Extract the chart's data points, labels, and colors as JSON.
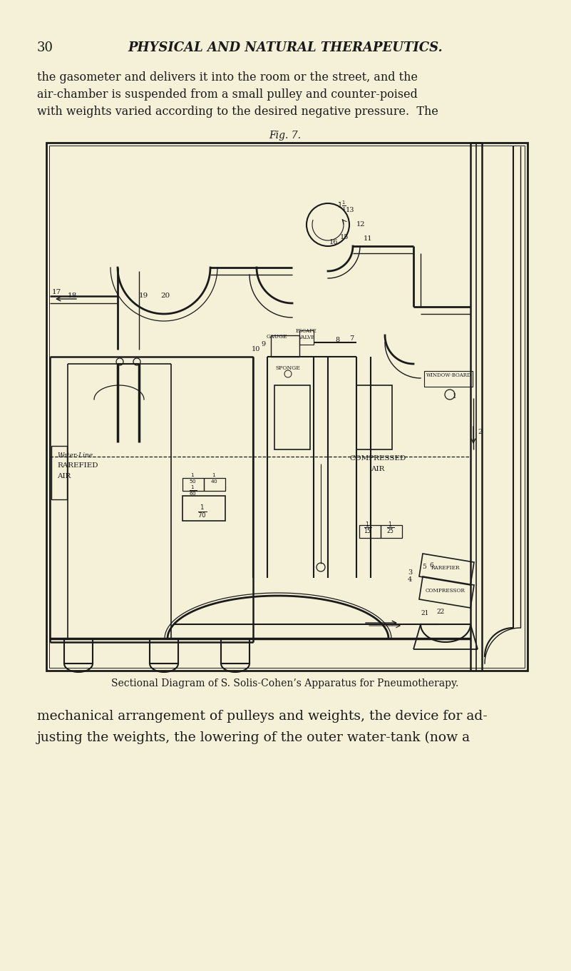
{
  "bg_color": "#f5f0d8",
  "page_number": "30",
  "header_text": "PHYSICAL AND NATURAL THERAPEUTICS.",
  "body_text_lines": [
    "the gasometer and delivers it into the room or the street, and the",
    "air-chamber is suspended from a small pulley and counter-poised",
    "with weights varied according to the desired negative pressure.  The"
  ],
  "fig_label": "Fig. 7.",
  "caption": "Sectional Diagram of S. Solis-Cohen’s Apparatus for Pneumotherapy.",
  "footer_text_lines": [
    "mechanical arrangement of pulleys and weights, the device for ad-",
    "justing the weights, the lowering of the outer water-tank (now a"
  ],
  "text_color": "#1a1a1a",
  "line_color": "#1a1a1a"
}
